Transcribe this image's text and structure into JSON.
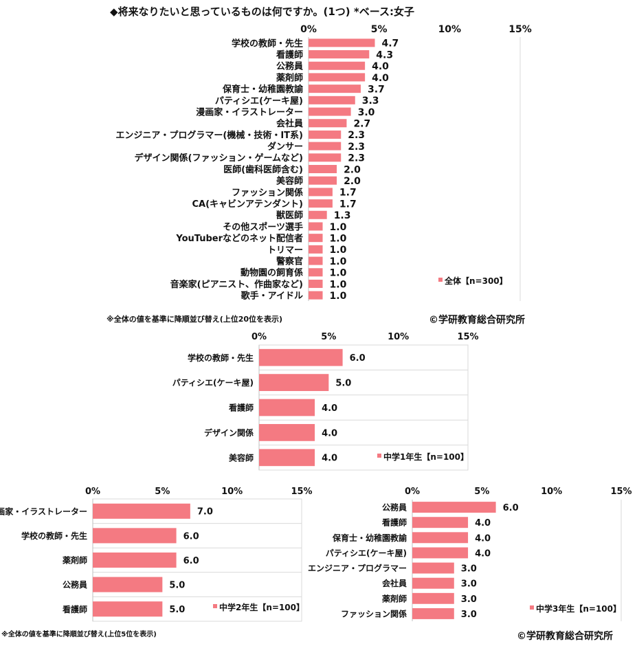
{
  "page": {
    "title": "◆将来なりたいと思っているものは何ですか。(1つ) *ベース:女子",
    "note_top": "※全体の値を基準に降順並び替え(上位20位を表示)",
    "note_bottom": "※全体の値を基準に降順並び替え(上位5位を表示)",
    "copyright": "©学研教育総合研究所"
  },
  "colors": {
    "bar": "#f47a82",
    "grid": "#d9d9d9",
    "text": "#111111"
  },
  "chart_data": [
    {
      "type": "bar",
      "orientation": "horizontal",
      "title": "",
      "xlim": [
        0,
        15
      ],
      "ticks": [
        "0%",
        "5%",
        "10%",
        "15%"
      ],
      "grid": false,
      "legend_position": "bottom-right",
      "series": [
        {
          "name": "全体【n=300】",
          "categories": [
            "学校の教師・先生",
            "看護師",
            "公務員",
            "薬剤師",
            "保育士・幼稚園教諭",
            "パティシエ(ケーキ屋)",
            "漫画家・イラストレーター",
            "会社員",
            "エンジニア・プログラマー(機械・技術・IT系)",
            "ダンサー",
            "デザイン関係(ファッション・ゲームなど)",
            "医師(歯科医師含む)",
            "美容師",
            "ファッション関係",
            "CA(キャビンアテンダント)",
            "獣医師",
            "その他スポーツ選手",
            "YouTuberなどのネット配信者",
            "トリマー",
            "警察官",
            "動物園の飼育係",
            "音楽家(ピアニスト、作曲家など)",
            "歌手・アイドル"
          ],
          "values": [
            4.7,
            4.3,
            4.0,
            4.0,
            3.7,
            3.3,
            3.0,
            2.7,
            2.3,
            2.3,
            2.3,
            2.0,
            2.0,
            1.7,
            1.7,
            1.3,
            1.0,
            1.0,
            1.0,
            1.0,
            1.0,
            1.0,
            1.0
          ],
          "labels": [
            "4.7",
            "4.3",
            "4.0",
            "4.0",
            "3.7",
            "3.3",
            "3.0",
            "2.7",
            "2.3",
            "2.3",
            "2.3",
            "2.0",
            "2.0",
            "1.7",
            "1.7",
            "1.3",
            "1.0",
            "1.0",
            "1.0",
            "1.0",
            "1.0",
            "1.0",
            "1.0"
          ]
        }
      ]
    },
    {
      "type": "bar",
      "orientation": "horizontal",
      "title": "",
      "xlim": [
        0,
        15
      ],
      "ticks": [
        "0%",
        "5%",
        "10%",
        "15%"
      ],
      "grid": true,
      "legend_position": "bottom-right",
      "series": [
        {
          "name": "中学1年生【n=100】",
          "categories": [
            "学校の教師・先生",
            "パティシエ(ケーキ屋)",
            "看護師",
            "デザイン関係",
            "美容師"
          ],
          "values": [
            6.0,
            5.0,
            4.0,
            4.0,
            4.0
          ],
          "labels": [
            "6.0",
            "5.0",
            "4.0",
            "4.0",
            "4.0"
          ]
        }
      ]
    },
    {
      "type": "bar",
      "orientation": "horizontal",
      "title": "",
      "xlim": [
        0,
        15
      ],
      "ticks": [
        "0%",
        "5%",
        "10%",
        "15%"
      ],
      "grid": true,
      "legend_position": "bottom-right",
      "series": [
        {
          "name": "中学2年生【n=100】",
          "categories": [
            "漫画家・イラストレーター",
            "学校の教師・先生",
            "薬剤師",
            "公務員",
            "看護師"
          ],
          "values": [
            7.0,
            6.0,
            6.0,
            5.0,
            5.0
          ],
          "labels": [
            "7.0",
            "6.0",
            "6.0",
            "5.0",
            "5.0"
          ]
        }
      ]
    },
    {
      "type": "bar",
      "orientation": "horizontal",
      "title": "",
      "xlim": [
        0,
        15
      ],
      "ticks": [
        "0%",
        "5%",
        "10%",
        "15%"
      ],
      "grid": false,
      "legend_position": "bottom-right",
      "series": [
        {
          "name": "中学3年生【n=100】",
          "categories": [
            "公務員",
            "看護師",
            "保育士・幼稚園教諭",
            "パティシエ(ケーキ屋)",
            "エンジニア・プログラマー",
            "会社員",
            "薬剤師",
            "ファッション関係"
          ],
          "values": [
            6.0,
            4.0,
            4.0,
            4.0,
            3.0,
            3.0,
            3.0,
            3.0
          ],
          "labels": [
            "6.0",
            "4.0",
            "4.0",
            "4.0",
            "3.0",
            "3.0",
            "3.0",
            "3.0"
          ]
        }
      ]
    }
  ]
}
